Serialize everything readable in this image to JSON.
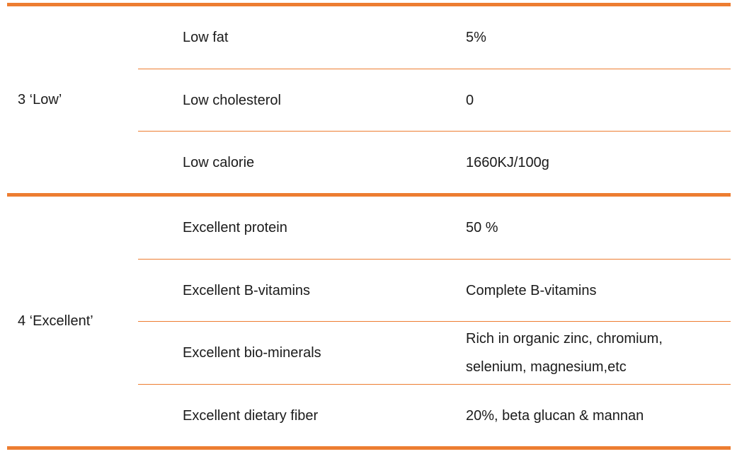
{
  "table": {
    "accent_color": "#ED7D31",
    "text_color": "#1b1b1b",
    "groups": [
      {
        "label": "3 ‘Low’",
        "rows": [
          {
            "attribute": "Low fat",
            "value": "5%"
          },
          {
            "attribute": "Low cholesterol",
            "value": "0"
          },
          {
            "attribute": "Low calorie",
            "value": "1660KJ/100g"
          }
        ]
      },
      {
        "label": "4 ‘Excellent’",
        "rows": [
          {
            "attribute": "Excellent protein",
            "value": "50 %"
          },
          {
            "attribute": "Excellent B-vitamins",
            "value": "Complete B-vitamins"
          },
          {
            "attribute": "Excellent bio-minerals",
            "value": "Rich in organic zinc, chromium, selenium, magnesium,etc"
          },
          {
            "attribute": "Excellent dietary fiber",
            "value": "20%, beta glucan & mannan"
          }
        ]
      }
    ]
  }
}
